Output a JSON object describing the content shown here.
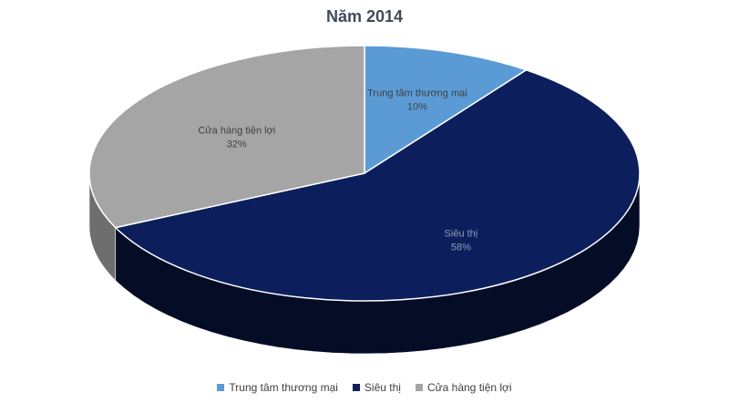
{
  "chart_data": {
    "type": "pie",
    "title": "Năm 2014",
    "categories": [
      "Trung tâm thương mại",
      "Siêu thị",
      "Cửa hàng tiện lợi"
    ],
    "values": [
      10,
      58,
      32
    ],
    "data_labels": [
      {
        "name": "Trung tâm thương mại",
        "percent": "10%"
      },
      {
        "name": "Siêu thị",
        "percent": "58%"
      },
      {
        "name": "Cửa hàng tiện lợi",
        "percent": "32%"
      }
    ],
    "colors": [
      "#5b9bd5",
      "#0c1f5c",
      "#a5a5a5"
    ],
    "side_colors": [
      "#3f6f9c",
      "#040c26",
      "#6e6e6e"
    ],
    "label_colors": [
      "#404040",
      "#8f9bb8",
      "#404040"
    ],
    "style": "3d",
    "legend_position": "bottom"
  }
}
